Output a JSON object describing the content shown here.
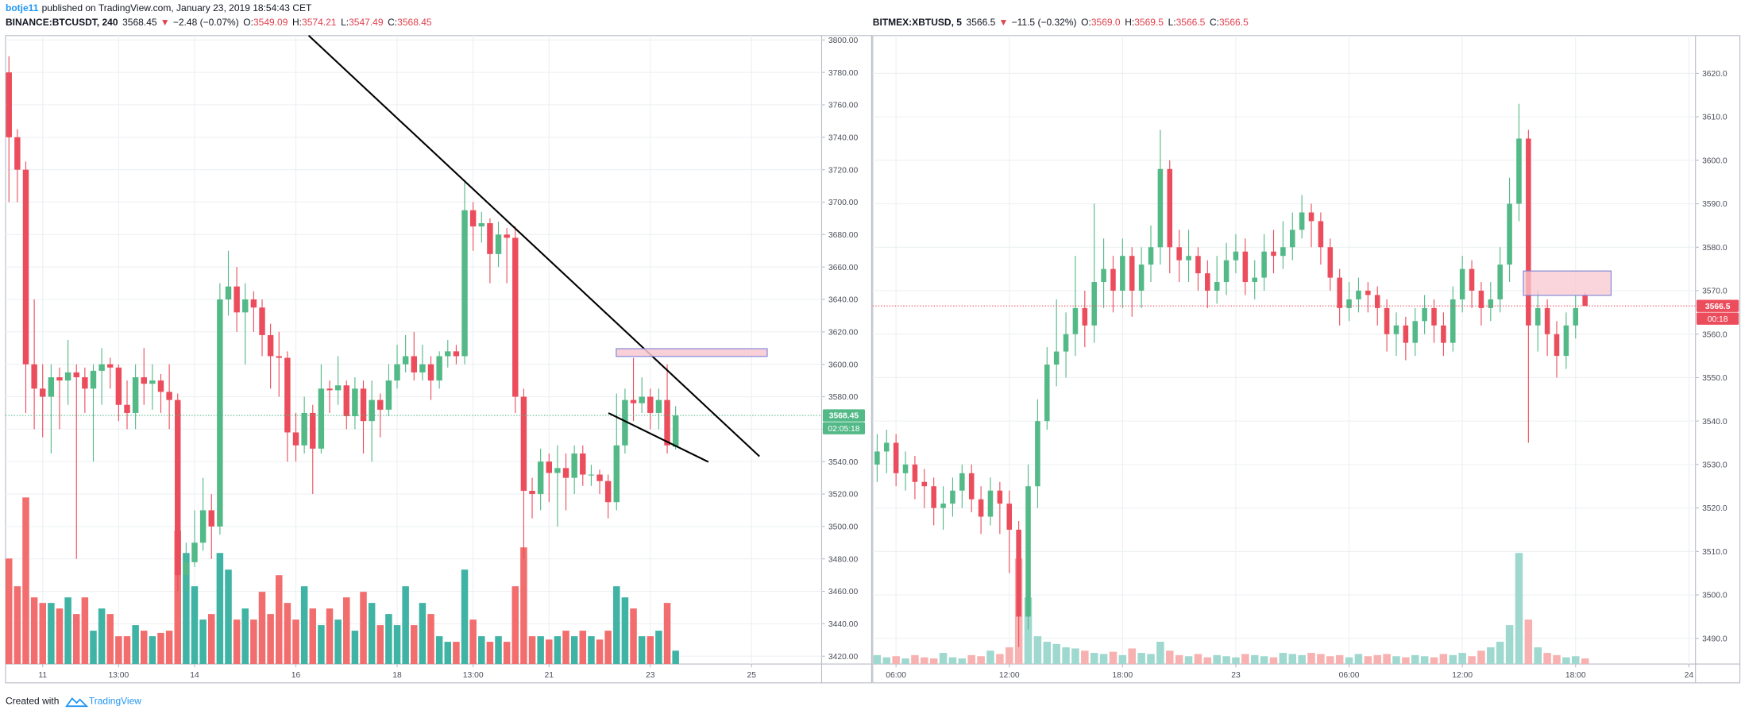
{
  "author": "botje11",
  "published": "published on TradingView.com, January 23, 2019 18:54:43 CET",
  "footer": {
    "created_with": "Created with",
    "brand": "TradingView"
  },
  "chart_data": [
    {
      "type": "candlestick",
      "title": "BINANCE:BTCUSDT, 240",
      "change_symbol": "▼",
      "change": "−2.48 (−0.07%)",
      "ohlc_names": [
        "O:",
        "H:",
        "L:",
        "C:"
      ],
      "countdown": "02:05:18",
      "up_color": "#53b987",
      "down_color": "#eb4d5c",
      "volume_up_color": "#3fb3a4",
      "volume_down_color": "#f26d6d",
      "grid": true,
      "open": [
        3780,
        3740,
        3720,
        3600,
        3585,
        3580,
        3592,
        3590,
        3595,
        3592,
        3585,
        3596,
        3600,
        3598,
        3575,
        3570,
        3592,
        3588,
        3590,
        3583,
        3578,
        3470,
        3478,
        3490,
        3510,
        3500,
        3640,
        3648,
        3632,
        3640,
        3635,
        3618,
        3605,
        3604,
        3558,
        3550,
        3570,
        3548,
        3585,
        3584,
        3587,
        3568,
        3585,
        3565,
        3578,
        3572,
        3590,
        3600,
        3605,
        3595,
        3600,
        3590,
        3605,
        3608,
        3605,
        3695,
        3685,
        3687,
        3668,
        3680,
        3678,
        3580,
        3522,
        3520,
        3540,
        3533,
        3536,
        3530,
        3545,
        3532,
        3532,
        3528,
        3515,
        3550,
        3578,
        3576,
        3580,
        3570,
        3578,
        3549.09
      ],
      "high": [
        3790,
        3745,
        3725,
        3640,
        3600,
        3600,
        3598,
        3615,
        3600,
        3598,
        3600,
        3610,
        3604,
        3600,
        3590,
        3600,
        3610,
        3600,
        3594,
        3600,
        3582,
        3490,
        3510,
        3530,
        3520,
        3650,
        3670,
        3660,
        3650,
        3645,
        3640,
        3625,
        3620,
        3608,
        3570,
        3580,
        3575,
        3600,
        3590,
        3605,
        3590,
        3592,
        3590,
        3590,
        3582,
        3600,
        3612,
        3618,
        3620,
        3612,
        3605,
        3608,
        3615,
        3612,
        3712,
        3700,
        3694,
        3690,
        3688,
        3684,
        3685,
        3585,
        3530,
        3548,
        3545,
        3550,
        3545,
        3550,
        3550,
        3538,
        3535,
        3532,
        3582,
        3585,
        3604,
        3592,
        3585,
        3585,
        3600,
        3574.21
      ],
      "low": [
        3700,
        3700,
        3570,
        3560,
        3555,
        3545,
        3560,
        3575,
        3480,
        3570,
        3540,
        3575,
        3585,
        3565,
        3560,
        3560,
        3575,
        3572,
        3570,
        3560,
        3460,
        3460,
        3475,
        3485,
        3480,
        3495,
        3630,
        3620,
        3600,
        3620,
        3605,
        3585,
        3580,
        3540,
        3540,
        3545,
        3520,
        3545,
        3570,
        3575,
        3560,
        3560,
        3545,
        3540,
        3555,
        3568,
        3585,
        3595,
        3590,
        3590,
        3578,
        3585,
        3598,
        3600,
        3600,
        3670,
        3675,
        3650,
        3660,
        3650,
        3570,
        3480,
        3505,
        3510,
        3515,
        3500,
        3510,
        3520,
        3525,
        3525,
        3520,
        3505,
        3510,
        3545,
        3565,
        3570,
        3560,
        3560,
        3545,
        3547.49
      ],
      "close": [
        3740,
        3720,
        3600,
        3585,
        3580,
        3592,
        3590,
        3595,
        3592,
        3585,
        3596,
        3600,
        3598,
        3575,
        3570,
        3592,
        3588,
        3590,
        3583,
        3578,
        3470,
        3478,
        3490,
        3510,
        3500,
        3640,
        3648,
        3632,
        3640,
        3635,
        3618,
        3605,
        3604,
        3558,
        3550,
        3570,
        3548,
        3585,
        3584,
        3587,
        3568,
        3585,
        3565,
        3578,
        3572,
        3590,
        3600,
        3605,
        3595,
        3600,
        3590,
        3605,
        3608,
        3605,
        3695,
        3685,
        3687,
        3668,
        3680,
        3678,
        3580,
        3522,
        3520,
        3540,
        3533,
        3536,
        3530,
        3545,
        3532,
        3532,
        3528,
        3515,
        3550,
        3578,
        3576,
        3580,
        3570,
        3578,
        3550,
        3568.45
      ],
      "volume": [
        95,
        70,
        150,
        60,
        55,
        55,
        50,
        60,
        45,
        60,
        30,
        50,
        45,
        25,
        25,
        35,
        30,
        25,
        28,
        30,
        120,
        100,
        70,
        40,
        45,
        100,
        85,
        40,
        50,
        40,
        65,
        45,
        80,
        55,
        40,
        70,
        50,
        35,
        50,
        40,
        60,
        30,
        65,
        55,
        35,
        45,
        35,
        70,
        35,
        55,
        45,
        25,
        20,
        20,
        85,
        40,
        25,
        20,
        25,
        20,
        70,
        105,
        25,
        25,
        22,
        25,
        30,
        25,
        30,
        25,
        22,
        30,
        70,
        60,
        50,
        25,
        25,
        30,
        55,
        12
      ],
      "xlim": [
        -0.4,
        96.3
      ],
      "xticks": [
        {
          "value": 4,
          "label": "11"
        },
        {
          "value": 13,
          "label": "13:00"
        },
        {
          "value": 22,
          "label": "14"
        },
        {
          "value": 34,
          "label": "16"
        },
        {
          "value": 46,
          "label": "18"
        },
        {
          "value": 55,
          "label": "13:00"
        },
        {
          "value": 64,
          "label": "21"
        },
        {
          "value": 76,
          "label": "23"
        },
        {
          "value": 88,
          "label": "25"
        }
      ],
      "ylim": [
        3415.2,
        3802.7
      ],
      "yticks": [
        {
          "value": 3420,
          "label": "3420.00"
        },
        {
          "value": 3440,
          "label": "3440.00"
        },
        {
          "value": 3460,
          "label": "3460.00"
        },
        {
          "value": 3480,
          "label": "3480.00"
        },
        {
          "value": 3500,
          "label": "3500.00"
        },
        {
          "value": 3520,
          "label": "3520.00"
        },
        {
          "value": 3540,
          "label": "3540.00"
        },
        {
          "value": 3560,
          "label": "3560.00"
        },
        {
          "value": 3580,
          "label": "3580.00"
        },
        {
          "value": 3600,
          "label": "3600.00"
        },
        {
          "value": 3620,
          "label": "3620.00"
        },
        {
          "value": 3640,
          "label": "3640.00"
        },
        {
          "value": 3660,
          "label": "3660.00"
        },
        {
          "value": 3680,
          "label": "3680.00"
        },
        {
          "value": 3700,
          "label": "3700.00"
        },
        {
          "value": 3720,
          "label": "3720.00"
        },
        {
          "value": 3740,
          "label": "3740.00"
        },
        {
          "value": 3760,
          "label": "3760.00"
        },
        {
          "value": 3780,
          "label": "3780.00"
        },
        {
          "value": 3800,
          "label": "3800.00"
        }
      ]
    },
    {
      "type": "candlestick",
      "title": "BITMEX:XBTUSD, 5",
      "change_symbol": "▼",
      "change": "−11.5 (−0.32%)",
      "ohlc_names": [
        "O:",
        "H:",
        "L:",
        "C:"
      ],
      "last_labels": [
        "3569.0",
        "3569.5",
        "3566.5",
        "3566.5"
      ],
      "countdown": "00:18",
      "up_color": "#53b987",
      "down_color": "#eb4d5c",
      "volume_up_color": "#9fd8cf",
      "volume_down_color": "#f7b1b1",
      "grid": true,
      "open": [
        3530,
        3533,
        3535,
        3528,
        3530,
        3526,
        3525,
        3520,
        3521,
        3524,
        3528,
        3522,
        3518,
        3524,
        3521,
        3515,
        3495,
        3525,
        3540,
        3553,
        3556,
        3560,
        3566,
        3562,
        3572,
        3575,
        3570,
        3578,
        3570,
        3576,
        3580,
        3598,
        3580,
        3577,
        3578,
        3574,
        3570,
        3572,
        3577,
        3579,
        3572,
        3573,
        3579,
        3578,
        3580,
        3584,
        3588,
        3586,
        3580,
        3573,
        3566,
        3568,
        3570,
        3569,
        3566,
        3560,
        3562,
        3558,
        3563,
        3566,
        3562,
        3558,
        3568,
        3575,
        3570,
        3566,
        3568,
        3576,
        3590,
        3605,
        3562,
        3566,
        3560,
        3555,
        3562,
        3569
      ],
      "high": [
        3537,
        3538,
        3537,
        3533,
        3532,
        3529,
        3527,
        3525,
        3527,
        3530,
        3530,
        3525,
        3527,
        3526,
        3524,
        3517,
        3530,
        3545,
        3557,
        3568,
        3565,
        3578,
        3570,
        3590,
        3582,
        3578,
        3582,
        3580,
        3580,
        3585,
        3607,
        3600,
        3584,
        3584,
        3580,
        3577,
        3578,
        3581,
        3583,
        3582,
        3577,
        3583,
        3584,
        3586,
        3588,
        3592,
        3590,
        3588,
        3582,
        3575,
        3572,
        3573,
        3572,
        3571,
        3568,
        3565,
        3564,
        3566,
        3569,
        3568,
        3565,
        3571,
        3578,
        3577,
        3572,
        3572,
        3580,
        3596,
        3613,
        3607,
        3570,
        3568,
        3563,
        3565,
        3569,
        3569.5
      ],
      "low": [
        3526,
        3528,
        3525,
        3524,
        3522,
        3520,
        3516,
        3515,
        3518,
        3520,
        3519,
        3514,
        3516,
        3514,
        3505,
        3488,
        3492,
        3520,
        3538,
        3548,
        3550,
        3555,
        3557,
        3558,
        3566,
        3565,
        3566,
        3564,
        3566,
        3572,
        3576,
        3574,
        3572,
        3572,
        3570,
        3566,
        3567,
        3569,
        3574,
        3569,
        3568,
        3570,
        3574,
        3575,
        3577,
        3582,
        3580,
        3576,
        3570,
        3562,
        3563,
        3565,
        3565,
        3562,
        3556,
        3555,
        3554,
        3555,
        3560,
        3558,
        3555,
        3556,
        3565,
        3566,
        3562,
        3563,
        3565,
        3572,
        3586,
        3535,
        3556,
        3555,
        3550,
        3552,
        3559,
        3566.5
      ],
      "close": [
        3533,
        3535,
        3528,
        3530,
        3526,
        3525,
        3520,
        3521,
        3524,
        3528,
        3522,
        3518,
        3524,
        3521,
        3515,
        3495,
        3525,
        3540,
        3553,
        3556,
        3560,
        3566,
        3562,
        3572,
        3575,
        3570,
        3578,
        3570,
        3576,
        3580,
        3598,
        3580,
        3577,
        3578,
        3574,
        3570,
        3572,
        3577,
        3579,
        3572,
        3573,
        3579,
        3578,
        3580,
        3584,
        3588,
        3586,
        3580,
        3573,
        3566,
        3568,
        3570,
        3569,
        3566,
        3560,
        3562,
        3558,
        3563,
        3566,
        3562,
        3558,
        3568,
        3575,
        3570,
        3566,
        3568,
        3576,
        3590,
        3605,
        3562,
        3566,
        3560,
        3555,
        3562,
        3566,
        3566.5
      ],
      "volume": [
        8,
        6,
        7,
        5,
        8,
        6,
        5,
        10,
        6,
        5,
        8,
        7,
        12,
        9,
        15,
        95,
        60,
        25,
        20,
        18,
        15,
        14,
        12,
        10,
        9,
        11,
        8,
        14,
        10,
        9,
        20,
        12,
        8,
        7,
        9,
        6,
        8,
        7,
        6,
        9,
        8,
        7,
        6,
        10,
        9,
        8,
        10,
        9,
        7,
        8,
        6,
        9,
        7,
        8,
        9,
        7,
        6,
        8,
        7,
        6,
        9,
        8,
        10,
        7,
        12,
        15,
        20,
        35,
        100,
        40,
        15,
        10,
        8,
        6,
        7,
        5
      ],
      "xlim": [
        -0.47,
        86.7
      ],
      "xticks": [
        {
          "value": 2,
          "label": "06:00"
        },
        {
          "value": 14,
          "label": "12:00"
        },
        {
          "value": 26,
          "label": "18:00"
        },
        {
          "value": 38,
          "label": "23"
        },
        {
          "value": 50,
          "label": "06:00"
        },
        {
          "value": 62,
          "label": "12:00"
        },
        {
          "value": 74,
          "label": "18:00"
        },
        {
          "value": 86,
          "label": "24"
        }
      ],
      "ylim": [
        3484.1,
        3628.7
      ],
      "yticks": [
        {
          "value": 3490,
          "label": "3490.0"
        },
        {
          "value": 3500,
          "label": "3500.0"
        },
        {
          "value": 3510,
          "label": "3510.0"
        },
        {
          "value": 3520,
          "label": "3520.0"
        },
        {
          "value": 3530,
          "label": "3530.0"
        },
        {
          "value": 3540,
          "label": "3540.0"
        },
        {
          "value": 3550,
          "label": "3550.0"
        },
        {
          "value": 3560,
          "label": "3560.0"
        },
        {
          "value": 3570,
          "label": "3570.0"
        },
        {
          "value": 3580,
          "label": "3580.0"
        },
        {
          "value": 3590,
          "label": "3590.0"
        },
        {
          "value": 3600,
          "label": "3600.0"
        },
        {
          "value": 3610,
          "label": "3610.0"
        },
        {
          "value": 3620,
          "label": "3620.0"
        }
      ]
    }
  ]
}
